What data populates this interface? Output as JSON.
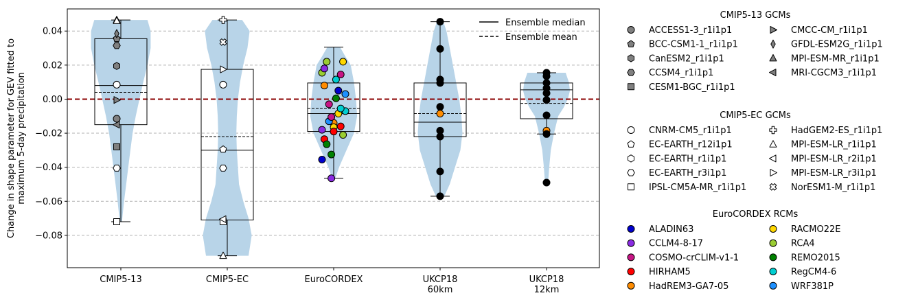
{
  "chart_data": {
    "type": "violin",
    "ylabel": "Change in shape parameter for GEV fitted to\nmaximum 5-day precipitation",
    "ylim": [
      -0.099,
      0.053
    ],
    "yticks": [
      0.04,
      0.02,
      0.0,
      -0.02,
      -0.04,
      -0.06,
      -0.08
    ],
    "ytick_labels": [
      "0.04",
      "0.02",
      "0.00",
      "−0.02",
      "−0.04",
      "−0.06",
      "−0.08"
    ],
    "grid": "horizontal dashed",
    "zero_line_color": "#8b0000",
    "violin_color": "#b8d4e8",
    "categories": [
      "CMIP5-13",
      "CMIP5-EC",
      "EuroCORDEX",
      "UKCP18\n60km",
      "UKCP18\n12km"
    ],
    "groups": [
      {
        "name": "CMIP5-13",
        "box": {
          "whislo": -0.072,
          "q1": -0.015,
          "median": 0.008,
          "mean": 0.004,
          "q3": 0.0355,
          "whishi": 0.0465
        },
        "violin": {
          "y": [
            0.0465,
            0.04,
            0.03,
            0.02,
            0.01,
            0.0,
            -0.01,
            -0.02,
            -0.03,
            -0.04,
            -0.05,
            -0.06,
            -0.072
          ],
          "w": [
            0.5,
            0.56,
            0.56,
            0.5,
            0.42,
            0.35,
            0.28,
            0.22,
            0.18,
            0.14,
            0.1,
            0.06,
            0.02
          ]
        },
        "points": [
          {
            "model": "ACCESS1-3_r1i1p1",
            "y": -0.0115
          },
          {
            "model": "BCC-CSM1-1_r1i1p1",
            "y": 0.0355
          },
          {
            "model": "CanESM2_r1i1p1",
            "y": 0.0195
          },
          {
            "model": "CCSM4_r1i1p1",
            "y": 0.0315
          },
          {
            "model": "CESM1-BGC_r1i1p1",
            "y": -0.028
          },
          {
            "model": "CMCC-CM_r1i1p1",
            "y": -0.0005
          },
          {
            "model": "GFDL-ESM2G_r1i1p1",
            "y": 0.0385
          },
          {
            "model": "MPI-ESM-MR_r1i1p1",
            "y": 0.0465
          },
          {
            "model": "MRI-CGCM3_r1i1p1",
            "y": -0.015
          },
          {
            "model": "CNRM-CM5_r1i1p1",
            "y": 0.0085
          },
          {
            "model": "EC-EARTH_r3i1p1",
            "y": -0.0405
          },
          {
            "model": "IPSL-CM5A-MR_r1i1p1",
            "y": -0.072
          },
          {
            "model": "MPI-ESM-LR_r1i1p1",
            "y": 0.046
          }
        ]
      },
      {
        "name": "CMIP5-EC",
        "box": {
          "whislo": -0.092,
          "q1": -0.071,
          "median": -0.03,
          "mean": -0.022,
          "q3": 0.0175,
          "whishi": 0.0465
        },
        "violin": {
          "y": [
            0.0465,
            0.04,
            0.03,
            0.02,
            0.01,
            0.0,
            -0.01,
            -0.02,
            -0.03,
            -0.04,
            -0.05,
            -0.06,
            -0.07,
            -0.08,
            -0.092
          ],
          "w": [
            0.28,
            0.42,
            0.38,
            0.3,
            0.24,
            0.2,
            0.18,
            0.17,
            0.18,
            0.2,
            0.22,
            0.3,
            0.4,
            0.46,
            0.4
          ]
        },
        "points": [
          {
            "model": "CNRM-CM5_r1i1p1",
            "y": 0.0085
          },
          {
            "model": "EC-EARTH_r12i1p1",
            "y": -0.0295
          },
          {
            "model": "EC-EARTH_r3i1p1",
            "y": -0.0405
          },
          {
            "model": "IPSL-CM5A-MR_r1i1p1",
            "y": -0.072
          },
          {
            "model": "HadGEM2-ES_r1i1p1",
            "y": 0.0465
          },
          {
            "model": "MPI-ESM-LR_r1i1p1",
            "y": -0.092
          },
          {
            "model": "MPI-ESM-LR_r2i1p1",
            "y": -0.0705
          },
          {
            "model": "MPI-ESM-LR_r3i1p1",
            "y": 0.0175
          },
          {
            "model": "NorESM1-M_r1i1p1",
            "y": 0.0335
          }
        ]
      },
      {
        "name": "EuroCORDEX",
        "box": {
          "whislo": -0.0465,
          "q1": -0.019,
          "median": -0.0085,
          "mean": -0.0055,
          "q3": 0.0095,
          "whishi": 0.0305
        },
        "violin": {
          "y": [
            0.0305,
            0.025,
            0.02,
            0.01,
            0.0,
            -0.01,
            -0.02,
            -0.03,
            -0.04,
            -0.0465
          ],
          "w": [
            0.12,
            0.22,
            0.32,
            0.38,
            0.42,
            0.44,
            0.38,
            0.24,
            0.1,
            0.03
          ]
        },
        "points": [
          {
            "model": "ALADIN63",
            "y": -0.0355
          },
          {
            "model": "CCLM4-8-17",
            "y": -0.0465
          },
          {
            "model": "COSMO-crCLIM-v1-1",
            "y": 0.0145
          },
          {
            "model": "HIRHAM5",
            "y": -0.0235
          },
          {
            "model": "HadREM3-GA7-05",
            "y": -0.014
          },
          {
            "model": "RACMO22E",
            "y": 0.022
          },
          {
            "model": "RCA4",
            "y": 0.022
          },
          {
            "model": "REMO2015",
            "y": 0.0005
          },
          {
            "model": "RegCM4-6",
            "y": -0.007
          },
          {
            "model": "WRF381P",
            "y": -0.013
          },
          {
            "model": "ALADIN63",
            "y": 0.005
          },
          {
            "model": "CCLM4-8-17",
            "y": -0.018
          },
          {
            "model": "COSMO-crCLIM-v1-1",
            "y": -0.0105
          },
          {
            "model": "HIRHAM5",
            "y": -0.016
          },
          {
            "model": "HadREM3-GA7-05",
            "y": 0.008
          },
          {
            "model": "RACMO22E",
            "y": -0.0165
          },
          {
            "model": "RCA4",
            "y": -0.021
          },
          {
            "model": "REMO2015",
            "y": -0.0265
          },
          {
            "model": "RegCM4-6",
            "y": 0.0115
          },
          {
            "model": "WRF381P",
            "y": 0.003
          },
          {
            "model": "COSMO-crCLIM-v1-1",
            "y": -0.003
          },
          {
            "model": "RACMO22E",
            "y": -0.0085
          },
          {
            "model": "RCA4",
            "y": 0.0155
          },
          {
            "model": "REMO2015",
            "y": -0.0325
          },
          {
            "model": "RegCM4-6",
            "y": -0.0055
          },
          {
            "model": "CCLM4-8-17",
            "y": 0.018
          },
          {
            "model": "HIRHAM5",
            "y": -0.019
          }
        ]
      },
      {
        "name": "UKCP18 60km",
        "box": {
          "whislo": -0.057,
          "q1": -0.022,
          "median": -0.0135,
          "mean": -0.0085,
          "q3": 0.0095,
          "whishi": 0.0455
        },
        "violin": {
          "y": [
            0.0455,
            0.04,
            0.03,
            0.02,
            0.01,
            0.0,
            -0.01,
            -0.02,
            -0.03,
            -0.04,
            -0.05,
            -0.057
          ],
          "w": [
            0.06,
            0.12,
            0.18,
            0.24,
            0.3,
            0.36,
            0.4,
            0.42,
            0.38,
            0.28,
            0.18,
            0.08
          ]
        },
        "points": [
          {
            "model": "UKCP18 60km member",
            "y": 0.0455,
            "color": "#000000"
          },
          {
            "model": "UKCP18 60km member",
            "y": 0.0295,
            "color": "#000000"
          },
          {
            "model": "UKCP18 60km member",
            "y": 0.0115,
            "color": "#000000"
          },
          {
            "model": "UKCP18 60km member",
            "y": 0.0095,
            "color": "#000000"
          },
          {
            "model": "UKCP18 60km member",
            "y": -0.0045,
            "color": "#000000"
          },
          {
            "model": "UKCP18 60km member",
            "y": -0.0085,
            "color": "#ff8c00"
          },
          {
            "model": "UKCP18 60km member",
            "y": -0.0185,
            "color": "#000000"
          },
          {
            "model": "UKCP18 60km member",
            "y": -0.022,
            "color": "#000000"
          },
          {
            "model": "UKCP18 60km member",
            "y": -0.0425,
            "color": "#000000"
          },
          {
            "model": "UKCP18 60km member",
            "y": -0.057,
            "color": "#000000"
          }
        ]
      },
      {
        "name": "UKCP18 12km",
        "box": {
          "whislo": -0.0205,
          "q1": -0.0115,
          "median": 0.0055,
          "mean": -0.0025,
          "q3": 0.0095,
          "whishi": 0.0155
        },
        "violin": {
          "y": [
            0.0155,
            0.01,
            0.005,
            0.0,
            -0.005,
            -0.01,
            -0.02,
            -0.03,
            -0.04,
            -0.049
          ],
          "w": [
            0.36,
            0.42,
            0.44,
            0.4,
            0.32,
            0.22,
            0.14,
            0.08,
            0.05,
            0.03
          ]
        },
        "points": [
          {
            "model": "UKCP18 12km member",
            "y": 0.0155,
            "color": "#000000"
          },
          {
            "model": "UKCP18 12km member",
            "y": 0.0135,
            "color": "#000000"
          },
          {
            "model": "UKCP18 12km member",
            "y": 0.0095,
            "color": "#000000"
          },
          {
            "model": "UKCP18 12km member",
            "y": 0.0065,
            "color": "#000000"
          },
          {
            "model": "UKCP18 12km member",
            "y": 0.0035,
            "color": "#000000"
          },
          {
            "model": "UKCP18 12km member",
            "y": -0.0005,
            "color": "#000000"
          },
          {
            "model": "UKCP18 12km member",
            "y": -0.0095,
            "color": "#000000"
          },
          {
            "model": "UKCP18 12km member",
            "y": -0.0185,
            "color": "#ff8c00"
          },
          {
            "model": "UKCP18 12km member",
            "y": -0.0205,
            "color": "#000000"
          },
          {
            "model": "UKCP18 12km member",
            "y": -0.049,
            "color": "#000000"
          }
        ]
      }
    ],
    "legend_lines": {
      "placement": "top-right inside plot",
      "items": [
        {
          "label": "Ensemble median",
          "style": "solid"
        },
        {
          "label": "Ensemble mean",
          "style": "dashed"
        }
      ]
    },
    "legends": [
      {
        "title": "CMIP5-13 GCMs",
        "columns": [
          [
            {
              "label": "ACCESS1-3_r1i1p1",
              "marker": "circle",
              "fill": "#808080"
            },
            {
              "label": "BCC-CSM1-1_r1i1p1",
              "marker": "pentagon",
              "fill": "#808080"
            },
            {
              "label": "CanESM2_r1i1p1",
              "marker": "hexagon",
              "fill": "#808080"
            },
            {
              "label": "CCSM4_r1i1p1",
              "marker": "hexagon2",
              "fill": "#808080"
            },
            {
              "label": "CESM1-BGC_r1i1p1",
              "marker": "square",
              "fill": "#808080"
            }
          ],
          [
            {
              "label": "CMCC-CM_r1i1p1",
              "marker": "triangle-right",
              "fill": "#808080"
            },
            {
              "label": "GFDL-ESM2G_r1i1p1",
              "marker": "thin-diamond",
              "fill": "#808080"
            },
            {
              "label": "MPI-ESM-MR_r1i1p1",
              "marker": "triangle-up",
              "fill": "#808080"
            },
            {
              "label": "MRI-CGCM3_r1i1p1",
              "marker": "triangle-left",
              "fill": "#808080"
            }
          ]
        ]
      },
      {
        "title": "CMIP5-EC GCMs",
        "columns": [
          [
            {
              "label": "CNRM-CM5_r1i1p1",
              "marker": "circle",
              "fill": "#ffffff"
            },
            {
              "label": "EC-EARTH_r12i1p1",
              "marker": "pentagon",
              "fill": "#ffffff"
            },
            {
              "label": "EC-EARTH_r1i1p1",
              "marker": "hexagon",
              "fill": "#ffffff"
            },
            {
              "label": "EC-EARTH_r3i1p1",
              "marker": "hexagon2",
              "fill": "#ffffff"
            },
            {
              "label": "IPSL-CM5A-MR_r1i1p1",
              "marker": "square",
              "fill": "#ffffff"
            }
          ],
          [
            {
              "label": "HadGEM2-ES_r1i1p1",
              "marker": "plus",
              "fill": "#ffffff"
            },
            {
              "label": "MPI-ESM-LR_r1i1p1",
              "marker": "triangle-up",
              "fill": "#ffffff"
            },
            {
              "label": "MPI-ESM-LR_r2i1p1",
              "marker": "triangle-left",
              "fill": "#ffffff"
            },
            {
              "label": "MPI-ESM-LR_r3i1p1",
              "marker": "triangle-right",
              "fill": "#ffffff"
            },
            {
              "label": "NorESM1-M_r1i1p1",
              "marker": "x",
              "fill": "#ffffff"
            }
          ]
        ]
      },
      {
        "title": "EuroCORDEX RCMs",
        "columns": [
          [
            {
              "label": "ALADIN63",
              "marker": "circle",
              "fill": "#0000cd"
            },
            {
              "label": "CCLM4-8-17",
              "marker": "circle",
              "fill": "#8a2be2"
            },
            {
              "label": "COSMO-crCLIM-v1-1",
              "marker": "circle",
              "fill": "#c71585"
            },
            {
              "label": "HIRHAM5",
              "marker": "circle",
              "fill": "#ff0000"
            },
            {
              "label": "HadREM3-GA7-05",
              "marker": "circle",
              "fill": "#ff8c00"
            }
          ],
          [
            {
              "label": "RACMO22E",
              "marker": "circle",
              "fill": "#ffd700"
            },
            {
              "label": "RCA4",
              "marker": "circle",
              "fill": "#9acd32"
            },
            {
              "label": "REMO2015",
              "marker": "circle",
              "fill": "#008000"
            },
            {
              "label": "RegCM4-6",
              "marker": "circle",
              "fill": "#00ced1"
            },
            {
              "label": "WRF381P",
              "marker": "circle",
              "fill": "#1e90ff"
            }
          ]
        ]
      }
    ]
  }
}
